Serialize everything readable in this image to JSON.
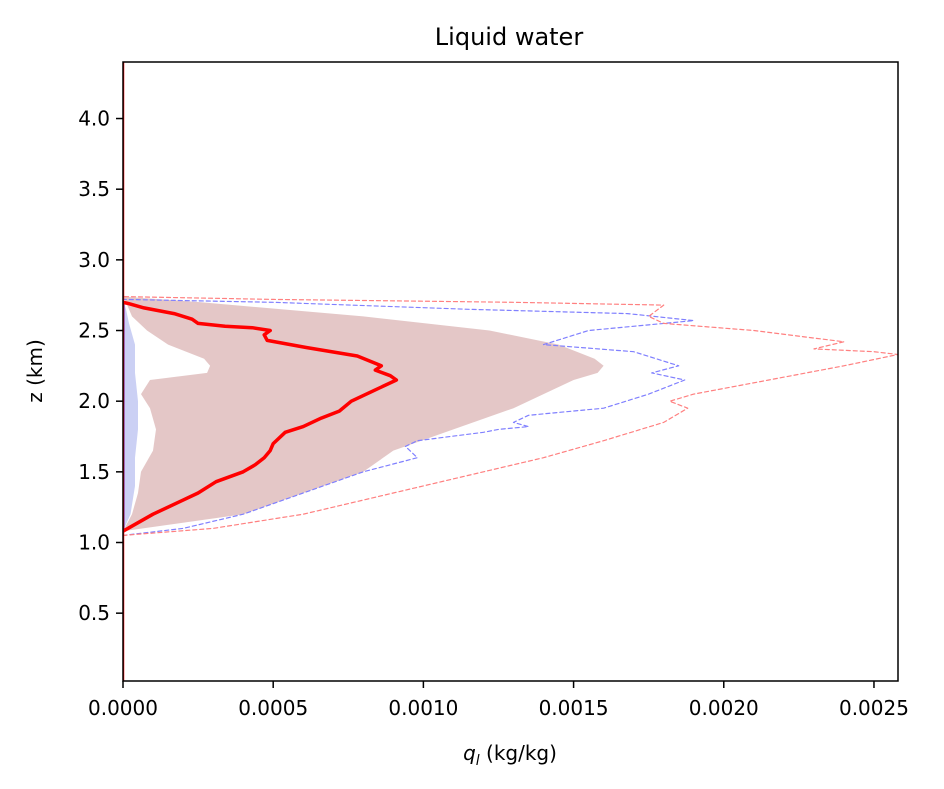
{
  "chart_data": {
    "type": "line",
    "title": "Liquid water",
    "xlabel_symbol": "q",
    "xlabel_subscript": "l",
    "xlabel_units": " (kg/kg)",
    "ylabel": "z (km)",
    "xlim": [
      0,
      0.00258
    ],
    "ylim": [
      0.02,
      4.4
    ],
    "xticks": [
      0,
      0.0005,
      0.001,
      0.0015,
      0.002,
      0.0025
    ],
    "xtick_labels": [
      "0.0000",
      "0.0005",
      "0.0010",
      "0.0015",
      "0.0020",
      "0.0025"
    ],
    "yticks": [
      0.5,
      1.0,
      1.5,
      2.0,
      2.5,
      3.0,
      3.5,
      4.0
    ],
    "ytick_labels": [
      "0.5",
      "1.0",
      "1.5",
      "2.0",
      "2.5",
      "3.0",
      "3.5",
      "4.0"
    ],
    "colors": {
      "red_mean": "#ff0000",
      "blue_mean": "#0000ff",
      "red_fill": "#c98f8f",
      "blue_fill": "#8c96e6",
      "red_max": "#ff8080",
      "blue_max": "#8080ff"
    },
    "series": [
      {
        "key": "blue_spread",
        "kind": "band",
        "x_low": [
          0,
          0,
          0,
          0,
          0,
          0,
          0,
          0,
          0,
          0,
          0
        ],
        "x_high": [
          0,
          2.5e-05,
          4e-05,
          4e-05,
          5e-05,
          5e-05,
          4e-05,
          4e-05,
          2e-05,
          1e-05,
          0
        ],
        "y": [
          1.08,
          1.2,
          1.4,
          1.6,
          1.8,
          2.0,
          2.2,
          2.4,
          2.55,
          2.65,
          2.72
        ]
      },
      {
        "key": "red_spread",
        "kind": "band",
        "x_low": [
          0,
          3e-05,
          5e-05,
          6e-05,
          0.0001,
          0.00011,
          9e-05,
          6e-05,
          9e-05,
          0.00028,
          0.00029,
          0.00027,
          0.00015,
          8e-05,
          3e-05,
          1e-05,
          0
        ],
        "x_high": [
          0,
          0.0004,
          0.0006,
          0.0008,
          0.0009,
          0.0011,
          0.0013,
          0.0014,
          0.0015,
          0.00158,
          0.0016,
          0.00157,
          0.00145,
          0.00122,
          0.0008,
          0.00026,
          0
        ],
        "y": [
          1.08,
          1.2,
          1.35,
          1.5,
          1.65,
          1.8,
          1.95,
          2.05,
          2.15,
          2.2,
          2.25,
          2.3,
          2.4,
          2.5,
          2.6,
          2.7,
          2.74
        ]
      },
      {
        "key": "blue_max",
        "kind": "dashed",
        "x": [
          0,
          0.0002,
          0.0004,
          0.0006,
          0.0008,
          0.00098,
          0.00094,
          0.00098,
          0.0012,
          0.00125,
          0.00135,
          0.0013,
          0.00135,
          0.0016,
          0.00175,
          0.00187,
          0.00176,
          0.00185,
          0.0017,
          0.0014,
          0.00155,
          0.0019,
          0.00168,
          0.00115,
          0.0005,
          0
        ],
        "y": [
          1.05,
          1.1,
          1.2,
          1.35,
          1.5,
          1.6,
          1.68,
          1.72,
          1.78,
          1.8,
          1.82,
          1.85,
          1.9,
          1.95,
          2.05,
          2.15,
          2.2,
          2.25,
          2.35,
          2.4,
          2.5,
          2.57,
          2.62,
          2.65,
          2.7,
          2.72
        ]
      },
      {
        "key": "red_max",
        "kind": "dashed",
        "x": [
          0,
          0.0003,
          0.0006,
          0.0009,
          0.0012,
          0.0014,
          0.0016,
          0.0018,
          0.00188,
          0.00182,
          0.0019,
          0.00215,
          0.0024,
          0.00258,
          0.0025,
          0.0023,
          0.0024,
          0.0021,
          0.0018,
          0.00175,
          0.0018,
          0.0013,
          0.0005,
          0
        ],
        "y": [
          1.05,
          1.1,
          1.2,
          1.35,
          1.5,
          1.6,
          1.72,
          1.85,
          1.95,
          2.0,
          2.05,
          2.15,
          2.25,
          2.33,
          2.35,
          2.37,
          2.42,
          2.5,
          2.55,
          2.6,
          2.68,
          2.7,
          2.72,
          2.74
        ]
      },
      {
        "key": "blue_mean",
        "kind": "line",
        "x": [
          0,
          0,
          0,
          0
        ],
        "y": [
          1.08,
          1.5,
          2.0,
          2.7
        ]
      },
      {
        "key": "red_mean",
        "kind": "line",
        "x": [
          0,
          0.0001,
          0.0002,
          0.00025,
          0.00031,
          0.0004,
          0.00044,
          0.00047,
          0.00049,
          0.0005,
          0.00054,
          0.0006,
          0.00066,
          0.00072,
          0.00076,
          0.00083,
          0.00091,
          0.00089,
          0.00084,
          0.00086,
          0.00078,
          0.00061,
          0.00048,
          0.00047,
          0.00049,
          0.00043,
          0.00034,
          0.00025,
          0.00023,
          0.00017,
          7e-05,
          2e-05,
          0
        ],
        "y": [
          1.08,
          1.2,
          1.3,
          1.35,
          1.43,
          1.5,
          1.55,
          1.6,
          1.65,
          1.7,
          1.78,
          1.82,
          1.88,
          1.93,
          2.0,
          2.07,
          2.15,
          2.18,
          2.22,
          2.25,
          2.32,
          2.38,
          2.43,
          2.47,
          2.5,
          2.52,
          2.53,
          2.55,
          2.58,
          2.62,
          2.66,
          2.69,
          2.7
        ]
      },
      {
        "key": "red_zero_line",
        "kind": "line",
        "x": [
          0,
          0
        ],
        "y": [
          0.02,
          4.4
        ]
      }
    ]
  }
}
